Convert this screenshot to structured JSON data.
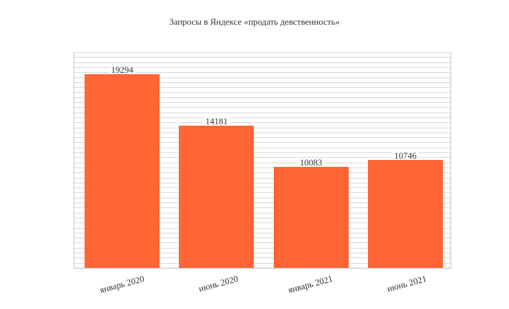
{
  "chart_data": {
    "type": "bar",
    "title": "Запросы в Яндексе «продать девственность»",
    "categories": [
      "январь 2020",
      "июнь 2020",
      "январь 2021",
      "июнь 2021"
    ],
    "values": [
      19294,
      14181,
      10083,
      10746
    ],
    "value_labels": [
      "19294",
      "14181",
      "10083",
      "10746"
    ],
    "xlabel": "",
    "ylabel": "",
    "ylim": [
      0,
      21500
    ],
    "grid": true,
    "grid_step": 500,
    "legend": "none",
    "bar_color": "#ff6633"
  }
}
